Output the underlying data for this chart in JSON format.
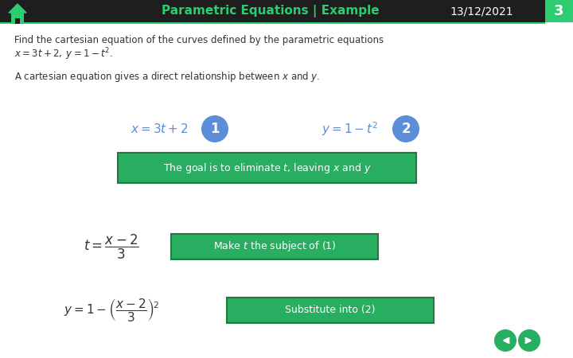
{
  "title": "Parametric Equations | Example",
  "date": "13/12/2021",
  "slide_number": "3",
  "header_bg": "#1e1e1e",
  "header_title_color": "#2ecc71",
  "slide_num_bg": "#2ecc71",
  "body_bg": "#ffffff",
  "green_box_bg": "#27ae60",
  "green_box_border": "#1e7a3e",
  "green_box_text_color": "#ffffff",
  "blue_circle_color": "#5b8dd9",
  "equation_color": "#5b8dd9",
  "body_text_color": "#333333",
  "nav_circle_color": "#27ae60",
  "line1": "Find the cartesian equation of the curves defined by the parametric equations",
  "line2_math": "$x = 3t + 2,\\; y = 1 - t^2$.",
  "line3_pre": "A cartesian equation gives a direct relationship between ",
  "line3_post": " and ",
  "eq1": "$x = 3t + 2$",
  "eq2": "$y = 1 - t^2$",
  "goal_text": "The goal is to eliminate $t$, leaving $x$ and $y$",
  "step1_eq": "$t = \\dfrac{x-2}{3}$",
  "step1_label": "Make $t$ the subject of (1)",
  "step2_eq": "$y = 1 - \\left(\\dfrac{x-2}{3}\\right)^{\\!2}$",
  "step2_label": "Substitute into (2)"
}
